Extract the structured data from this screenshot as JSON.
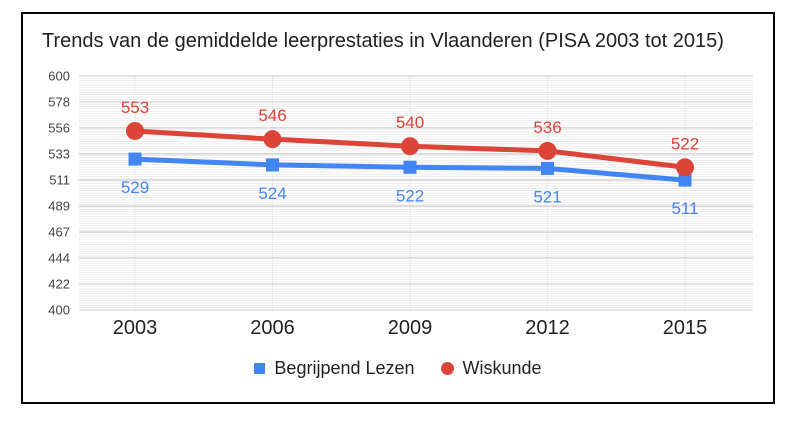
{
  "window": {
    "background": "#ffffff",
    "border_color": "#000000"
  },
  "chart_data": {
    "type": "line",
    "title": "Trends van de gemiddelde leerprestaties in Vlaanderen (PISA 2003 tot 2015)",
    "categories": [
      "2003",
      "2006",
      "2009",
      "2012",
      "2015"
    ],
    "series": [
      {
        "name": "Begrijpend Lezen",
        "marker": "square",
        "color": "#4285F4",
        "label_position": "below",
        "values": [
          529,
          524,
          522,
          521,
          511
        ]
      },
      {
        "name": "Wiskunde",
        "marker": "circle",
        "color": "#DB4437",
        "label_position": "above",
        "values": [
          553,
          546,
          540,
          536,
          522
        ]
      }
    ],
    "ylim": [
      400,
      600
    ],
    "yticks": [
      400,
      422,
      444,
      467,
      489,
      511,
      533,
      556,
      578,
      600
    ],
    "minor_grid_step": 2,
    "grid": "horizontal-major-minor",
    "legend_position": "bottom",
    "data_labels": true,
    "colors": {
      "grid_major": "#c9c9c9",
      "grid_minor": "#e7e7e7",
      "category_grid": "#ebebeb",
      "axis_text": "#444444",
      "category_text": "#222222",
      "title_text": "#212121",
      "legend_text": "#222222"
    }
  }
}
